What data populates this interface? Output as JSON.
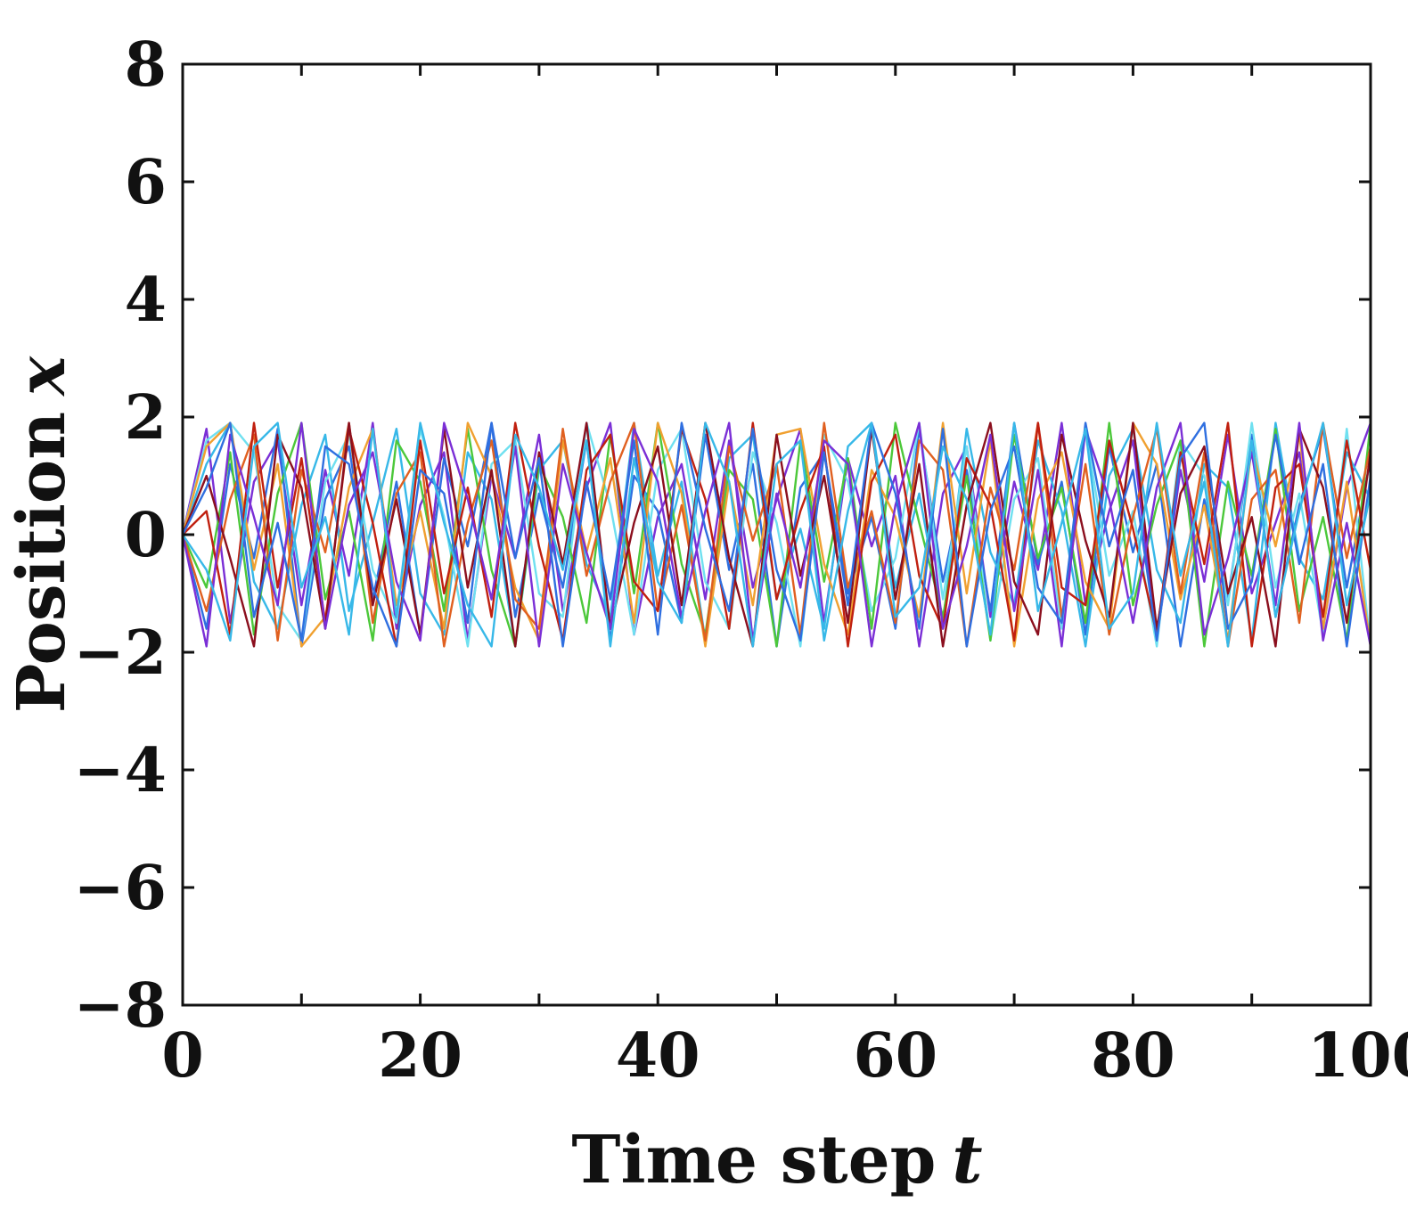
{
  "chart_data": {
    "type": "line",
    "title": "",
    "xlabel": "Time step",
    "xlabel_var": "t",
    "ylabel": "Position",
    "ylabel_var": "x",
    "xlim": [
      0,
      100
    ],
    "ylim": [
      -8,
      8
    ],
    "xticks": [
      0,
      20,
      40,
      60,
      80,
      100
    ],
    "yticks": [
      8,
      6,
      4,
      2,
      0,
      -2,
      -4,
      -6,
      -8
    ],
    "xtick_labels": [
      "0",
      "20",
      "40",
      "60",
      "80",
      "100"
    ],
    "ytick_labels": [
      "8",
      "6",
      "4",
      "2",
      "0",
      "−2",
      "−4",
      "−6",
      "−8"
    ],
    "grid": false,
    "legend": "none",
    "colors": [
      "#7b2fd6",
      "#2f6fe0",
      "#37b8e8",
      "#6fe0f0",
      "#4cc83a",
      "#f0a030",
      "#e06020",
      "#c02010",
      "#8b0f1e"
    ],
    "series": [
      {
        "values": [
          0,
          1.8,
          -1.5,
          0.9,
          1.6,
          -1.2,
          1.1,
          -0.7,
          1.9,
          -1.6,
          0.5,
          1.4,
          -1.8,
          1.0,
          -0.4,
          1.7,
          -1.3,
          0.8,
          1.9,
          -1.7,
          0.3,
          1.2,
          -1.1,
          1.6,
          -0.9,
          0.6,
          1.8,
          -1.5,
          1.3,
          -0.2,
          1.0,
          -1.9,
          0.7,
          1.5,
          -1.4,
          0.9,
          -0.6,
          1.9,
          -1.2,
          0.4,
          1.6,
          -1.8,
          1.1,
          -0.8,
          1.7,
          -1.0,
          0.2,
          1.4,
          -1.6,
          0.8,
          1.9
        ]
      },
      {
        "values": [
          0,
          -1.6,
          1.2,
          -0.4,
          1.8,
          -1.9,
          0.6,
          1.5,
          -1.1,
          0.9,
          -1.7,
          1.3,
          -0.2,
          1.9,
          -1.4,
          0.7,
          -0.9,
          1.6,
          -1.8,
          1.0,
          0.4,
          -1.5,
          1.7,
          -0.6,
          1.2,
          -1.9,
          0.8,
          1.4,
          -1.0,
          0.3,
          -1.6,
          1.8,
          -0.8,
          1.1,
          -1.3,
          1.9,
          -0.5,
          0.9,
          -1.7,
          1.5,
          -0.3,
          1.2,
          -1.9,
          0.6,
          -1.1,
          1.7,
          -1.4,
          0.5,
          1.8,
          -0.9,
          1.3
        ]
      },
      {
        "values": [
          0,
          1.2,
          1.9,
          -0.8,
          -1.6,
          0.5,
          1.7,
          -1.3,
          0.2,
          1.8,
          -1.0,
          -1.7,
          1.4,
          0.6,
          -1.9,
          1.1,
          1.6,
          -0.5,
          -1.4,
          1.9,
          -0.7,
          0.9,
          -1.8,
          1.3,
          1.7,
          -1.1,
          0.1,
          -1.6,
          1.5,
          1.9,
          -0.9,
          0.7,
          -1.5,
          1.8,
          -0.3,
          -1.2,
          1.6,
          0.4,
          -1.9,
          1.0,
          1.8,
          -0.6,
          -1.5,
          1.2,
          0.8,
          -1.8,
          1.9,
          -0.4,
          -1.1,
          1.4,
          0.6
        ]
      },
      {
        "values": [
          0,
          1.6,
          1.9,
          1.4,
          -1.2,
          -1.8,
          0.9,
          1.7,
          -0.6,
          -1.5,
          1.8,
          0.3,
          -1.9,
          1.2,
          1.6,
          -1.0,
          -1.4,
          1.9,
          0.5,
          -1.7,
          1.1,
          1.8,
          -0.8,
          -1.6,
          1.4,
          0.2,
          -1.9,
          1.7,
          0.9,
          -1.3,
          -0.4,
          1.9,
          -1.1,
          1.5,
          -1.8,
          0.6,
          1.3,
          -1.6,
          1.8,
          -0.7,
          0.4,
          -1.9,
          1.6,
          1.0,
          -1.2,
          1.9,
          -0.9,
          0.7,
          -1.7,
          1.8,
          -1.9
        ]
      },
      {
        "values": [
          0,
          -0.9,
          1.4,
          -1.7,
          0.7,
          1.9,
          -1.1,
          0.4,
          -1.8,
          1.6,
          0.9,
          -1.3,
          1.8,
          -0.6,
          -1.9,
          1.2,
          0.3,
          -1.5,
          1.7,
          -1.0,
          1.9,
          -0.5,
          -1.7,
          1.1,
          0.6,
          -1.9,
          1.6,
          -0.8,
          1.3,
          -1.6,
          1.9,
          0.2,
          -1.4,
          1.0,
          -1.8,
          1.7,
          -0.4,
          0.8,
          -1.5,
          1.9,
          -1.2,
          0.5,
          1.6,
          -1.9,
          0.9,
          -0.7,
          1.8,
          -1.3,
          0.3,
          -1.8,
          1.9
        ]
      },
      {
        "values": [
          0,
          1.5,
          1.9,
          -0.6,
          1.2,
          -1.9,
          -1.4,
          0.8,
          1.8,
          -1.2,
          0.4,
          -1.6,
          1.9,
          1.0,
          -0.9,
          -1.8,
          1.6,
          -0.3,
          1.3,
          -1.5,
          1.9,
          0.7,
          -1.9,
          0.9,
          -1.2,
          1.7,
          1.8,
          -0.5,
          -1.7,
          1.1,
          0.3,
          -1.4,
          1.9,
          -1.0,
          1.6,
          -1.9,
          0.6,
          1.4,
          -0.8,
          -1.6,
          1.9,
          1.2,
          -1.1,
          0.5,
          -1.8,
          1.5,
          -0.2,
          1.7,
          -1.6,
          0.9,
          -1.9
        ]
      },
      {
        "values": [
          0,
          -1.3,
          0.6,
          1.7,
          -1.8,
          1.1,
          -0.3,
          1.9,
          -1.5,
          0.7,
          1.4,
          -1.9,
          0.2,
          1.6,
          -1.1,
          -1.6,
          1.8,
          -0.7,
          0.9,
          1.9,
          -1.3,
          0.5,
          -1.8,
          1.5,
          -0.1,
          1.2,
          -1.7,
          1.9,
          -0.9,
          0.4,
          -1.5,
          1.6,
          1.1,
          -1.9,
          0.8,
          -0.6,
          1.9,
          -1.4,
          1.2,
          -1.7,
          0.3,
          1.8,
          -1.0,
          1.4,
          -1.9,
          0.6,
          1.1,
          -1.5,
          1.9,
          -0.4,
          1.5
        ]
      },
      {
        "values": [
          0,
          0.4,
          -1.7,
          1.9,
          -0.9,
          1.3,
          -1.5,
          1.8,
          0.2,
          -1.9,
          1.6,
          -1.0,
          0.8,
          -1.4,
          1.9,
          -0.2,
          -1.8,
          1.1,
          1.7,
          -0.8,
          -1.3,
          1.8,
          0.6,
          -1.6,
          1.9,
          -1.1,
          0.4,
          1.5,
          -1.9,
          0.9,
          1.7,
          -0.7,
          -1.6,
          1.3,
          0.5,
          -1.8,
          1.9,
          -0.9,
          -1.2,
          1.6,
          0.1,
          -1.7,
          1.4,
          -0.5,
          1.9,
          -1.9,
          0.8,
          1.2,
          -1.4,
          1.6,
          -0.6
        ]
      },
      {
        "values": [
          0,
          1.0,
          -0.4,
          -1.9,
          1.7,
          0.8,
          -1.6,
          1.9,
          -1.2,
          0.6,
          -1.7,
          1.8,
          -0.9,
          1.1,
          -1.9,
          1.4,
          -0.5,
          1.9,
          -1.6,
          0.2,
          1.5,
          -1.2,
          1.9,
          -0.4,
          -1.9,
          1.7,
          -0.7,
          1.0,
          -1.5,
          1.8,
          -1.1,
          1.2,
          -1.9,
          0.5,
          1.9,
          -0.8,
          -1.7,
          1.7,
          -0.1,
          -1.4,
          1.9,
          -1.6,
          0.7,
          1.5,
          -1.0,
          0.3,
          -1.9,
          1.8,
          0.8,
          -1.5,
          1.4
        ]
      },
      {
        "values": [
          0,
          -1.9,
          1.7,
          0.3,
          -1.2,
          1.9,
          -1.6,
          0.5,
          1.4,
          -0.8,
          -1.8,
          1.9,
          0.6,
          -1.1,
          1.5,
          -1.9,
          1.2,
          -0.3,
          -1.6,
          1.8,
          0.9,
          -1.4,
          0.4,
          1.9,
          -1.8,
          0.7,
          -0.9,
          1.6,
          1.2,
          -1.9,
          0.5,
          1.9,
          -1.6,
          -0.2,
          1.7,
          -1.3,
          1.1,
          -1.9,
          1.8,
          0.6,
          -1.5,
          0.8,
          1.9,
          -1.7,
          -0.4,
          1.4,
          -1.2,
          1.9,
          -1.8,
          0.2,
          -1.9
        ]
      },
      {
        "values": [
          0,
          0.8,
          1.9,
          -1.4,
          0.2,
          -1.8,
          1.5,
          1.2,
          -0.9,
          -1.9,
          1.1,
          0.7,
          -1.5,
          1.9,
          -0.4,
          1.3,
          -1.9,
          0.9,
          -1.1,
          1.6,
          -1.7,
          1.9,
          0.1,
          -1.3,
          1.8,
          -0.6,
          -1.8,
          1.4,
          -1.2,
          1.9,
          0.7,
          -1.6,
          1.8,
          -1.9,
          0.4,
          1.5,
          -0.9,
          -1.5,
          1.9,
          -0.2,
          1.1,
          -1.8,
          1.3,
          1.9,
          -1.6,
          -0.8,
          1.7,
          -0.5,
          1.2,
          -1.9,
          1.0
        ]
      },
      {
        "values": [
          0,
          -0.6,
          -1.8,
          1.5,
          1.9,
          -0.9,
          0.3,
          -1.7,
          1.8,
          -1.4,
          1.9,
          0.2,
          -1.2,
          -1.9,
          1.7,
          0.8,
          -0.6,
          1.6,
          -1.9,
          1.3,
          -0.8,
          -1.5,
          1.9,
          0.9,
          -1.9,
          1.2,
          1.6,
          -1.8,
          0.4,
          1.9,
          -1.4,
          -0.9,
          1.5,
          0.6,
          -1.7,
          1.9,
          -1.3,
          0.2,
          1.8,
          -1.6,
          -1.0,
          1.9,
          -0.7,
          0.9,
          -1.9,
          1.6,
          -1.4,
          0.4,
          1.9,
          -1.2,
          0.7
        ]
      }
    ]
  }
}
